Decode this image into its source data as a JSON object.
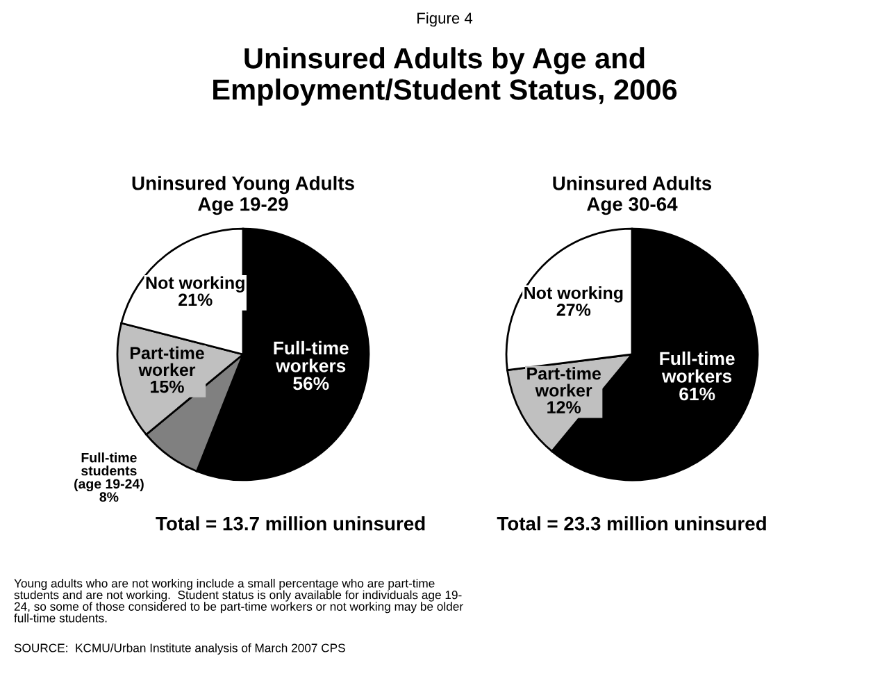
{
  "chart_data": [
    {
      "type": "pie",
      "title": "Uninsured Young Adults\nAge 19-29",
      "categories": [
        "Full-time\nworkers",
        "Full-time\nstudents\n(age 19-24)",
        "Part-time\nworker",
        "Not working"
      ],
      "values": [
        56,
        8,
        15,
        21
      ],
      "value_labels": [
        "56%",
        "8%",
        "15%",
        "21%"
      ],
      "colors": [
        "#000000",
        "#808080",
        "#c0c0c0",
        "#ffffff"
      ],
      "annotations": [
        "Figure 4",
        "Uninsured Adults by Age and\nEmployment/Student Status, 2006",
        "Total = 13.7 million uninsured",
        "Young adults who are not working include a small percentage who are part-time\nstudents and are not working.  Student status is only available for individuals age 19-\n24, so some of those considered to be part-time workers or not working may be older\nfull-time students.",
        "SOURCE:  KCMU/Urban Institute analysis of March 2007 CPS"
      ]
    },
    {
      "type": "pie",
      "title": "Uninsured Adults\nAge 30-64",
      "categories": [
        "Full-time\nworkers",
        "Part-time\nworker",
        "Not working"
      ],
      "values": [
        61,
        12,
        27
      ],
      "value_labels": [
        "61%",
        "12%",
        "27%"
      ],
      "colors": [
        "#000000",
        "#c0c0c0",
        "#ffffff"
      ],
      "annotations": [
        "Total = 23.3 million uninsured"
      ]
    }
  ]
}
